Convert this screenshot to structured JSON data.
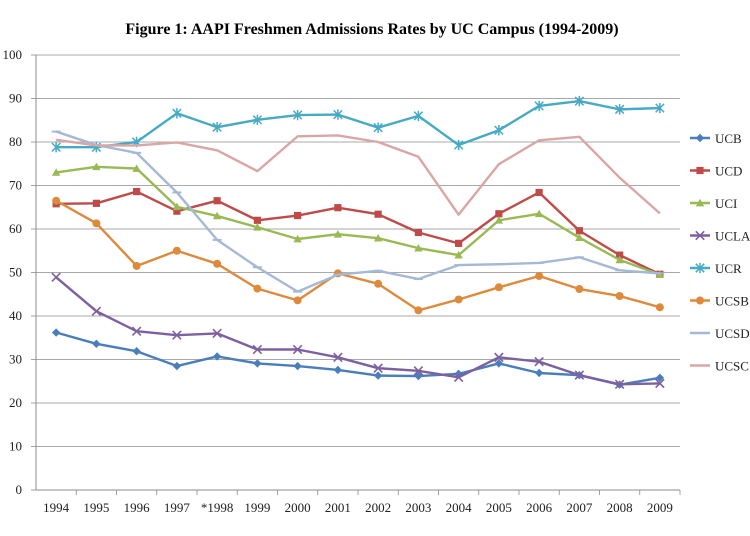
{
  "chart_data": {
    "type": "line",
    "title": "Figure 1: AAPI Freshmen Admissions Rates by UC Campus (1994-2009)",
    "xlabel": "",
    "ylabel": "",
    "categories": [
      "1994",
      "1995",
      "1996",
      "1997",
      "*1998",
      "1999",
      "2000",
      "2001",
      "2002",
      "2003",
      "2004",
      "2005",
      "2006",
      "2007",
      "2008",
      "2009"
    ],
    "ylim": [
      0,
      100
    ],
    "yticks": [
      0,
      10,
      20,
      30,
      40,
      50,
      60,
      70,
      80,
      90,
      100
    ],
    "grid": "horizontal",
    "legend_position": "right",
    "series": [
      {
        "name": "UCB",
        "color": "#4a7ebb",
        "marker": "diamond",
        "values": [
          36.2,
          33.6,
          31.9,
          28.5,
          30.7,
          29.1,
          28.5,
          27.6,
          26.3,
          26.2,
          26.7,
          29.1,
          26.9,
          26.4,
          24.2,
          25.8
        ]
      },
      {
        "name": "UCD",
        "color": "#be4b48",
        "marker": "square",
        "values": [
          65.8,
          65.9,
          68.6,
          64.1,
          66.5,
          62.0,
          63.1,
          64.9,
          63.4,
          59.2,
          56.7,
          63.5,
          68.4,
          59.6,
          54.0,
          49.6
        ]
      },
      {
        "name": "UCI",
        "color": "#98b954",
        "marker": "triangle",
        "values": [
          73.0,
          74.3,
          73.9,
          65.1,
          63.0,
          60.4,
          57.7,
          58.8,
          57.9,
          55.6,
          54.0,
          62.0,
          63.5,
          58.0,
          52.9,
          49.5
        ]
      },
      {
        "name": "UCLA",
        "color": "#7d60a0",
        "marker": "x",
        "values": [
          48.9,
          41.1,
          36.5,
          35.6,
          36.0,
          32.3,
          32.3,
          30.5,
          28.0,
          27.4,
          25.9,
          30.5,
          29.5,
          26.4,
          24.3,
          24.5
        ]
      },
      {
        "name": "UCR",
        "color": "#46aac5",
        "marker": "star",
        "values": [
          78.8,
          78.8,
          80.0,
          86.6,
          83.4,
          85.1,
          86.2,
          86.3,
          83.3,
          86.0,
          79.3,
          82.7,
          88.3,
          89.4,
          87.5,
          87.8
        ]
      },
      {
        "name": "UCSB",
        "color": "#dd8a3d",
        "marker": "circle",
        "values": [
          66.5,
          61.3,
          51.5,
          55.0,
          52.0,
          46.3,
          43.6,
          49.8,
          47.4,
          41.3,
          43.8,
          46.6,
          49.2,
          46.2,
          44.6,
          42.0
        ]
      },
      {
        "name": "UCSD",
        "color": "#a5b9d7",
        "marker": "line",
        "values": [
          82.4,
          79.3,
          77.5,
          68.4,
          57.5,
          51.2,
          45.6,
          49.5,
          50.4,
          48.5,
          51.7,
          51.9,
          52.2,
          53.5,
          50.5,
          49.8
        ]
      },
      {
        "name": "UCSC",
        "color": "#d9a6a5",
        "marker": "none",
        "values": [
          80.5,
          79.2,
          79.2,
          79.9,
          78.1,
          73.3,
          81.3,
          81.5,
          80.0,
          76.6,
          63.3,
          74.9,
          80.4,
          81.2,
          71.8,
          63.6
        ]
      }
    ]
  }
}
